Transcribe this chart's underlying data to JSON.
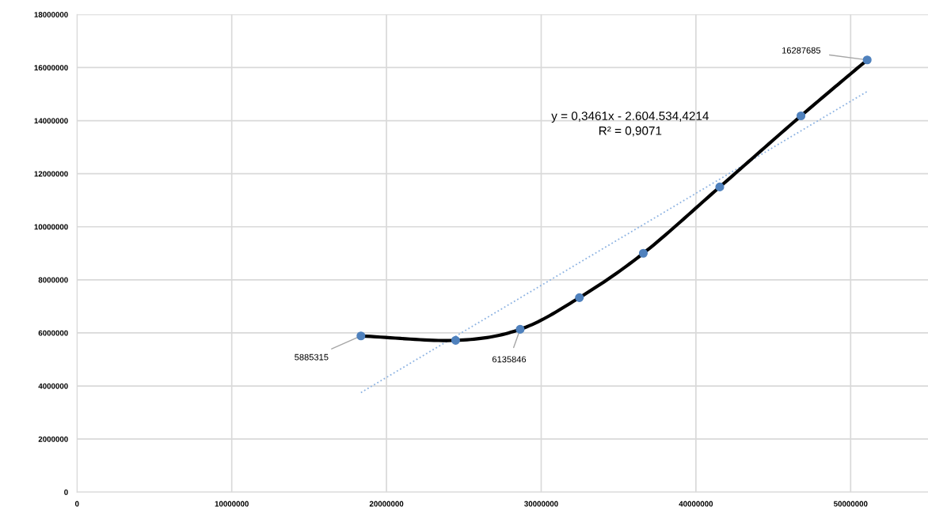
{
  "chart_data": {
    "type": "line",
    "x": [
      18350000,
      24470000,
      28640000,
      32470000,
      36600000,
      41540000,
      46790000,
      51070000
    ],
    "series": [
      {
        "color": "#000000",
        "values": [
          5885315,
          5720000,
          6135846,
          7330000,
          9000000,
          11500000,
          14180000,
          16287685
        ]
      },
      {
        "type": "scatter",
        "color": "#4f81bd",
        "marker": "circle",
        "values": [
          5885315,
          5720000,
          6135846,
          7330000,
          9000000,
          11500000,
          14180000,
          16287685
        ],
        "value_labels": [
          "5885315",
          null,
          "6135846",
          null,
          null,
          null,
          null,
          "16287685"
        ]
      },
      {
        "type": "line",
        "color": "#8db3e2",
        "line_style": "dotted",
        "x": [
          18350000,
          51070000
        ],
        "values": [
          3750000,
          15100000
        ]
      }
    ],
    "annotations": [
      "y = 0,3461x - 2.604.534,4214\nR² = 0,9071"
    ],
    "xlim": [
      0,
      55000000
    ],
    "xticks": [
      0,
      10000000,
      20000000,
      30000000,
      40000000,
      50000000
    ],
    "ylim": [
      0,
      18000000
    ],
    "yticks": [
      0,
      2000000,
      4000000,
      6000000,
      8000000,
      10000000,
      12000000,
      14000000,
      16000000,
      18000000
    ],
    "grid": true,
    "legend": false
  }
}
